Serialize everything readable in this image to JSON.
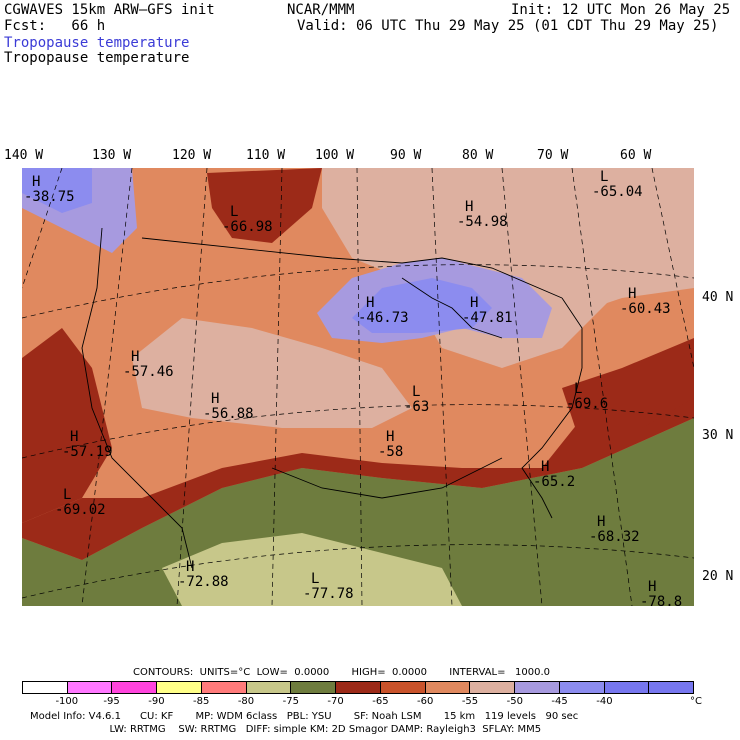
{
  "header": {
    "model": "CGWAVES 15km ARW–GFS init",
    "org": "NCAR/MMM",
    "init": "Init: 12 UTC Mon 26 May 25",
    "fcst": "Fcst:   66 h",
    "valid": "Valid: 06 UTC Thu 29 May 25 (01 CDT Thu 29 May 25)",
    "field_blue": "Tropopause temperature",
    "field_black": "Tropopause temperature"
  },
  "longitude_labels": [
    "140 W",
    "130 W",
    "120 W",
    "110 W",
    "100 W",
    "90 W",
    "80 W",
    "70 W",
    "60 W"
  ],
  "latitude_labels": [
    "40 N",
    "30 N",
    "20 N"
  ],
  "map_labels": [
    {
      "type": "H",
      "value": "-38.75"
    },
    {
      "type": "L",
      "value": "-66.98"
    },
    {
      "type": "H",
      "value": "-54.98"
    },
    {
      "type": "L",
      "value": "-65.04"
    },
    {
      "type": "H",
      "value": "-60.43"
    },
    {
      "type": "H",
      "value": "-46.73"
    },
    {
      "type": "H",
      "value": "-47.81"
    },
    {
      "type": "H",
      "value": "-57.46"
    },
    {
      "type": "H",
      "value": "-56.88"
    },
    {
      "type": "L",
      "value": "-63"
    },
    {
      "type": "L",
      "value": "-69.6"
    },
    {
      "type": "H",
      "value": "-57.19"
    },
    {
      "type": "H",
      "value": "-58"
    },
    {
      "type": "H",
      "value": "-65.2"
    },
    {
      "type": "L",
      "value": "-69.02"
    },
    {
      "type": "H",
      "value": "-68.32"
    },
    {
      "type": "H",
      "value": "-72.88"
    },
    {
      "type": "L",
      "value": "-77.78"
    },
    {
      "type": "H",
      "value": "-78.8"
    }
  ],
  "contours": {
    "text": "CONTOURS:  UNITS=°C  LOW=  0.0000       HIGH=  0.0000       INTERVAL=   1000.0"
  },
  "colorbar": {
    "colors": [
      "#ffffff",
      "#ff77ff",
      "#ff44dd",
      "#ffff88",
      "#ff7b7b",
      "#c7c78a",
      "#6e7c3e",
      "#9c2a18",
      "#c9532b",
      "#e0895f",
      "#ddb0a0",
      "#a79adf",
      "#8c8cef",
      "#7777ef",
      "#7777ef"
    ],
    "ticks": [
      "-100",
      "-95",
      "-90",
      "-85",
      "-80",
      "-75",
      "-70",
      "-65",
      "-60",
      "-55",
      "-50",
      "-45",
      "-40"
    ],
    "unit": "°C"
  },
  "footer": {
    "line1": "Model Info: V4.6.1      CU: KF       MP: WDM 6class   PBL: YSU       SF: Noah LSM       15 km   119 levels   90 sec",
    "line2": "                         LW: RRTMG    SW: RRTMG   DIFF: simple KM: 2D Smagor DAMP: Rayleigh3  SFLAY: MM5"
  }
}
